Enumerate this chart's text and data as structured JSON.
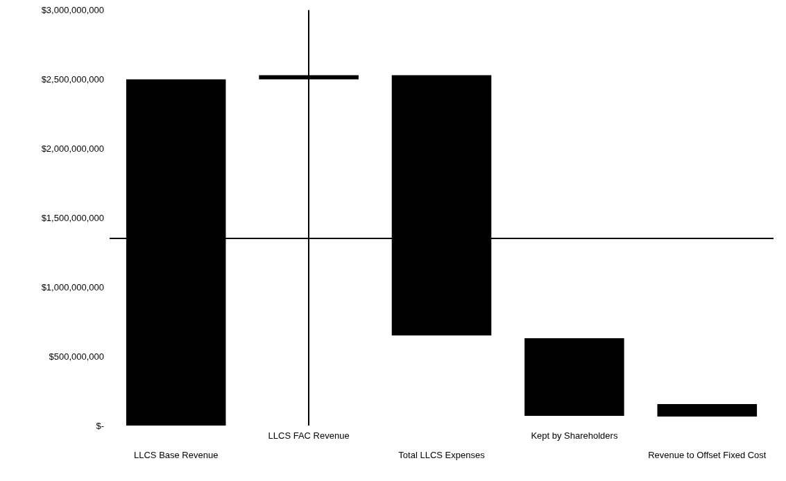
{
  "chart_data": {
    "type": "bar",
    "categories": [
      "LLCS Base Revenue",
      "LLCS FAC Revenue",
      "Total LLCS Expenses",
      "Kept by Shareholders",
      "Revenue to Offset Fixed Cost"
    ],
    "values": [
      2500000000,
      30000000,
      1880000000,
      560000000,
      90000000
    ],
    "base": [
      0,
      2500000000,
      650000000,
      70000000,
      65000000
    ],
    "color": "#000000",
    "ylim": [
      0,
      3000000000
    ],
    "yticks": [
      {
        "value": 0,
        "label": "$-"
      },
      {
        "value": 500000000,
        "label": "$500,000,000"
      },
      {
        "value": 1000000000,
        "label": "$1,000,000,000"
      },
      {
        "value": 1500000000,
        "label": "$1,500,000,000"
      },
      {
        "value": 2000000000,
        "label": "$2,000,000,000"
      },
      {
        "value": 2500000000,
        "label": "$2,500,000,000"
      },
      {
        "value": 3000000000,
        "label": "$3,000,000,000"
      }
    ],
    "ref_lines": [
      {
        "axis": "y",
        "value": 1350000000,
        "color": "#000000"
      },
      {
        "axis": "x",
        "value": "LLCS FAC Revenue",
        "color": "#000000"
      }
    ],
    "grid": false
  }
}
